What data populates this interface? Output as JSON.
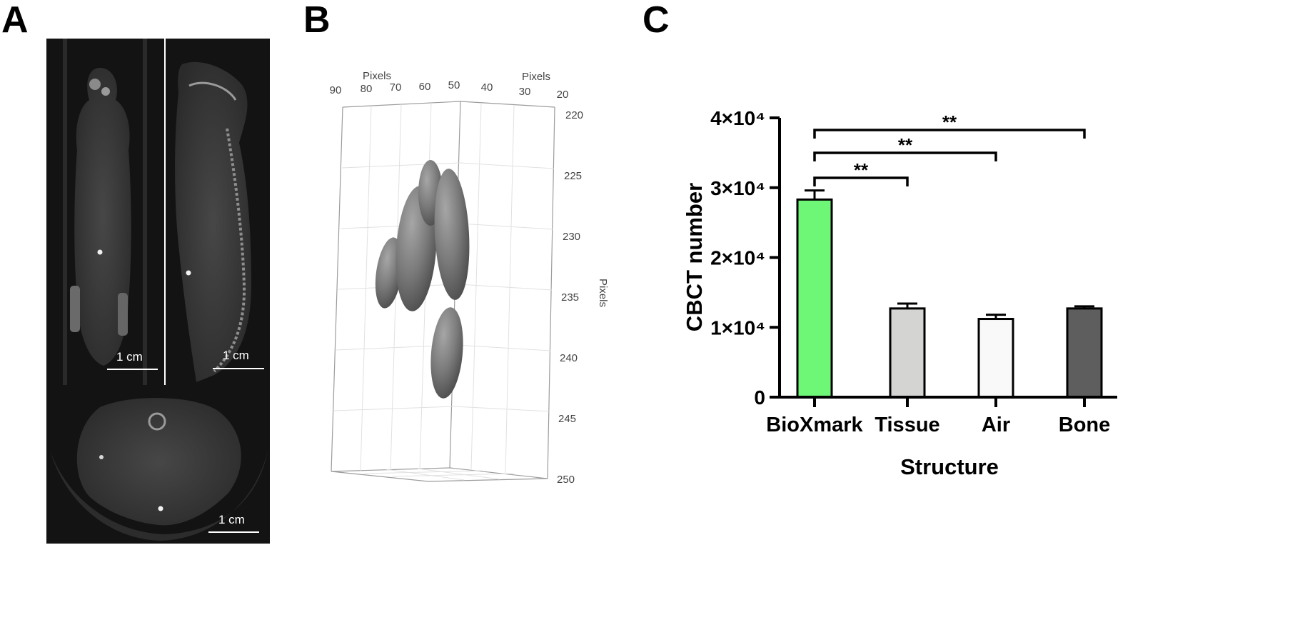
{
  "figure": {
    "panels": [
      {
        "letter": "A",
        "scale_bars": [
          "1 cm",
          "1 cm",
          "1 cm"
        ]
      },
      {
        "letter": "B",
        "axis_labels": {
          "top_left": "Pixels",
          "top_right": "Pixels",
          "right": "Pixels"
        },
        "top_left_ticks": [
          "90",
          "80",
          "70",
          "60",
          "50"
        ],
        "top_right_ticks": [
          "40",
          "30",
          "20"
        ],
        "right_ticks": [
          "220",
          "225",
          "230",
          "235",
          "240",
          "245",
          "250"
        ]
      },
      {
        "letter": "C"
      }
    ]
  },
  "chart_data": {
    "type": "bar",
    "categories": [
      "BioXmark",
      "Tissue",
      "Air",
      "Bone"
    ],
    "values": [
      28300,
      12700,
      11200,
      12700
    ],
    "errors": [
      1300,
      700,
      600,
      300
    ],
    "colors": [
      "#6ef777",
      "#d4d4d2",
      "#f9f9f9",
      "#5e5e5e"
    ],
    "ylim": [
      0,
      40000
    ],
    "yticks": [
      0,
      10000,
      20000,
      30000,
      40000
    ],
    "ytick_labels": [
      "0",
      "1×10⁴",
      "2×10⁴",
      "3×10⁴",
      "4×10⁴"
    ],
    "xlabel": "Structure",
    "ylabel": "CBCT number",
    "title": "",
    "significance": [
      {
        "from": "BioXmark",
        "to": "Tissue",
        "label": "**"
      },
      {
        "from": "BioXmark",
        "to": "Air",
        "label": "**"
      },
      {
        "from": "BioXmark",
        "to": "Bone",
        "label": "**"
      }
    ]
  }
}
